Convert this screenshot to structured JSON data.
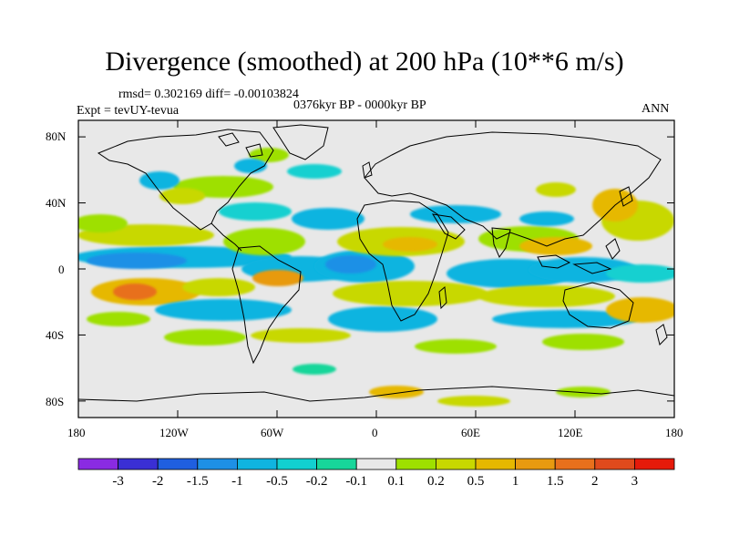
{
  "title": "Divergence (smoothed) at 200 hPa (10**6 m/s)",
  "stats": "rmsd= 0.302169 diff= -0.00103824",
  "period": "0376kyr BP - 0000kyr BP",
  "experiment": "Expt = tevUY-tevua",
  "season": "ANN",
  "lat_labels": [
    "80N",
    "40N",
    "0",
    "40S",
    "80S"
  ],
  "lon_labels": [
    "180",
    "120W",
    "60W",
    "0",
    "60E",
    "120E",
    "180"
  ],
  "colorbar": {
    "labels": [
      "-3",
      "-2",
      "-1.5",
      "-1",
      "-0.5",
      "-0.2",
      "-0.1",
      "0.1",
      "0.2",
      "0.5",
      "1",
      "1.5",
      "2",
      "3"
    ],
    "colors": [
      "#8a2be2",
      "#3a2fd4",
      "#1f5fe0",
      "#1e90e6",
      "#10b4e0",
      "#12d0d0",
      "#17d69a",
      "#e8e8e8",
      "#9ee000",
      "#c8d800",
      "#e6b800",
      "#e89a10",
      "#e8701c",
      "#e04a1c",
      "#e61a0a"
    ]
  },
  "chart_data": {
    "type": "heatmap",
    "title": "Divergence (smoothed) at 200 hPa (10**6 m/s)",
    "xlabel": "",
    "ylabel": "",
    "xlim": [
      -180,
      180
    ],
    "ylim": [
      -90,
      90
    ],
    "contour_levels": [
      -3,
      -2,
      -1.5,
      -1,
      -0.5,
      -0.2,
      -0.1,
      0.1,
      0.2,
      0.5,
      1,
      1.5,
      2,
      3
    ],
    "approx_features": [
      {
        "lon": -150,
        "lat": 5,
        "value": -0.7
      },
      {
        "lon": -140,
        "lat": -15,
        "value": 1.2
      },
      {
        "lon": -115,
        "lat": 2,
        "value": 0.4
      },
      {
        "lon": -85,
        "lat": 0,
        "value": -0.6
      },
      {
        "lon": -30,
        "lat": 2,
        "value": -0.9
      },
      {
        "lon": 10,
        "lat": 12,
        "value": 0.6
      },
      {
        "lon": 20,
        "lat": -15,
        "value": 0.4
      },
      {
        "lon": 60,
        "lat": 0,
        "value": -0.5
      },
      {
        "lon": 95,
        "lat": 12,
        "value": 0.8
      },
      {
        "lon": 130,
        "lat": 2,
        "value": -0.6
      },
      {
        "lon": 160,
        "lat": -22,
        "value": 0.5
      }
    ]
  }
}
